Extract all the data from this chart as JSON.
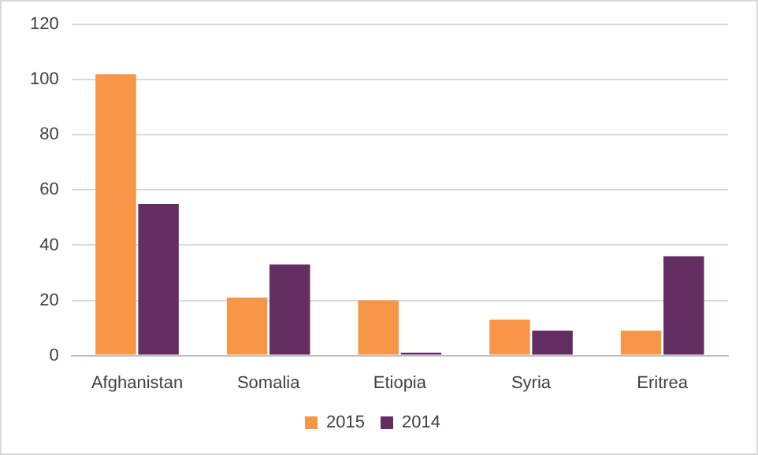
{
  "chart_data": {
    "type": "bar",
    "categories": [
      "Afghanistan",
      "Somalia",
      "Etiopia",
      "Syria",
      "Eritrea"
    ],
    "series": [
      {
        "name": "2015",
        "color": "#f79646",
        "values": [
          102,
          21,
          20,
          13,
          9
        ]
      },
      {
        "name": "2014",
        "color": "#632e62",
        "values": [
          55,
          33,
          1,
          9,
          36
        ]
      }
    ],
    "ylim": [
      0,
      120
    ],
    "yticks": [
      0,
      20,
      40,
      60,
      80,
      100,
      120
    ],
    "grid": "y",
    "legend": "bottom"
  }
}
